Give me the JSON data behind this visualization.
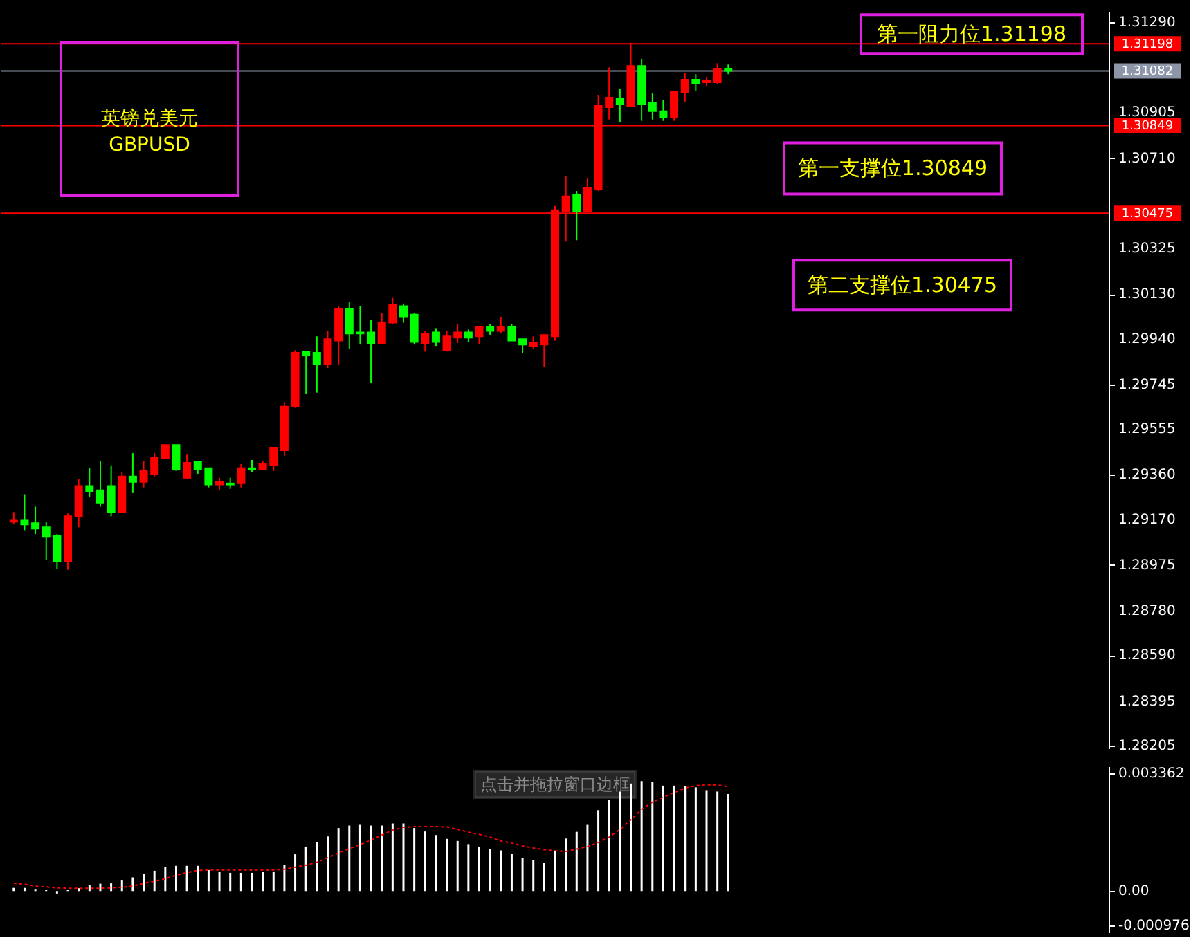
{
  "chart_data": [
    {
      "type": "candlestick",
      "categories": [
        null,
        null,
        null,
        null,
        null,
        null,
        null,
        null,
        null,
        null,
        null,
        null,
        null,
        null,
        null,
        null,
        null,
        null,
        null,
        null,
        null,
        null,
        null,
        null,
        null,
        null,
        null,
        null,
        null,
        null,
        null,
        null,
        null,
        null,
        null,
        null,
        null,
        null,
        null,
        null,
        null,
        null,
        null,
        null,
        null,
        null,
        null,
        null,
        null,
        null,
        null,
        null,
        null,
        null,
        null,
        null,
        null,
        null,
        null,
        null,
        null,
        null,
        null,
        null,
        null,
        null,
        null,
        null,
        null,
        null,
        null,
        null,
        null,
        null,
        null,
        null,
        null,
        null,
        null,
        null,
        null,
        null,
        null,
        null,
        null,
        null,
        null,
        null,
        null,
        null,
        null,
        null,
        null,
        null,
        null,
        null,
        null,
        null,
        null,
        null,
        null
      ],
      "ohlc": [
        [
          1.2916,
          1.29201,
          1.29148,
          1.29165
        ],
        [
          1.29165,
          1.29277,
          1.29124,
          1.29148
        ],
        [
          1.29154,
          1.29224,
          1.29107,
          1.2913
        ],
        [
          1.29136,
          1.2916,
          1.28996,
          1.29095
        ],
        [
          1.29101,
          1.29107,
          1.2896,
          1.2899
        ],
        [
          1.2899,
          1.29195,
          1.28955,
          1.29183
        ],
        [
          1.29183,
          1.29341,
          1.29136,
          1.29312
        ],
        [
          1.29312,
          1.29388,
          1.29265,
          1.29288
        ],
        [
          1.29294,
          1.29417,
          1.29224,
          1.29241
        ],
        [
          1.29312,
          1.294,
          1.29183,
          1.29201
        ],
        [
          1.29201,
          1.2937,
          1.29201,
          1.29353
        ],
        [
          1.29353,
          1.29452,
          1.29282,
          1.29329
        ],
        [
          1.29329,
          1.29417,
          1.29306,
          1.29376
        ],
        [
          1.29364,
          1.29452,
          1.29353,
          1.29435
        ],
        [
          1.29429,
          1.29487,
          1.29429,
          1.29487
        ],
        [
          1.29487,
          1.29487,
          1.29376,
          1.29382
        ],
        [
          1.29347,
          1.29446,
          1.29341,
          1.29411
        ],
        [
          1.29417,
          1.29417,
          1.29364,
          1.29382
        ],
        [
          1.29388,
          1.29388,
          1.29306,
          1.29318
        ],
        [
          1.29318,
          1.29347,
          1.29294,
          1.29329
        ],
        [
          1.29323,
          1.29347,
          1.293,
          1.29318
        ],
        [
          1.29323,
          1.29405,
          1.29306,
          1.29388
        ],
        [
          1.29388,
          1.29423,
          1.2937,
          1.29382
        ],
        [
          1.29382,
          1.29417,
          1.29382,
          1.29405
        ],
        [
          1.294,
          1.29476,
          1.29376,
          1.29476
        ],
        [
          1.29464,
          1.29669,
          1.29441,
          1.29651
        ],
        [
          1.29651,
          1.29891,
          1.29645,
          1.2988
        ],
        [
          1.29885,
          1.29885,
          1.29704,
          1.29868
        ],
        [
          1.2988,
          1.2995,
          1.2971,
          1.29833
        ],
        [
          1.29833,
          1.29973,
          1.29815,
          1.29938
        ],
        [
          1.29932,
          1.30079,
          1.29827,
          1.30067
        ],
        [
          1.30067,
          1.30096,
          1.29897,
          1.29962
        ],
        [
          1.29967,
          1.30079,
          1.29915,
          1.29962
        ],
        [
          1.29967,
          1.3002,
          1.29751,
          1.29921
        ],
        [
          1.29921,
          1.30049,
          1.29915,
          1.30008
        ],
        [
          1.30008,
          1.30114,
          1.30003,
          1.30084
        ],
        [
          1.30079,
          1.3009,
          1.30008,
          1.30032
        ],
        [
          1.30043,
          1.30049,
          1.29915,
          1.29926
        ],
        [
          1.29921,
          1.29973,
          1.29885,
          1.29962
        ],
        [
          1.29967,
          1.29985,
          1.29909,
          1.29926
        ],
        [
          1.29891,
          1.29973,
          1.29885,
          1.2995
        ],
        [
          1.29944,
          1.30003,
          1.29921,
          1.29967
        ],
        [
          1.29967,
          1.29979,
          1.29926,
          1.29944
        ],
        [
          1.2995,
          1.29991,
          1.29915,
          1.29991
        ],
        [
          1.29991,
          1.30003,
          1.29956,
          1.29973
        ],
        [
          1.29973,
          1.30032,
          1.29962,
          1.29991
        ],
        [
          1.29991,
          1.30003,
          1.29932,
          1.29932
        ],
        [
          1.29938,
          1.29938,
          1.2988,
          1.29915
        ],
        [
          1.29909,
          1.2995,
          1.29897,
          1.29921
        ],
        [
          1.29915,
          1.29956,
          1.29821,
          1.29956
        ],
        [
          1.2995,
          1.30506,
          1.29932,
          1.30488
        ],
        [
          1.30483,
          1.30635,
          1.30354,
          1.30547
        ],
        [
          1.30553,
          1.3057,
          1.3036,
          1.30483
        ],
        [
          1.30483,
          1.30623,
          1.30483,
          1.30582
        ],
        [
          1.30576,
          1.3098,
          1.3057,
          1.30933
        ],
        [
          1.30927,
          1.31097,
          1.30875,
          1.30968
        ],
        [
          1.30963,
          1.31004,
          1.30863,
          1.30939
        ],
        [
          1.30933,
          1.31202,
          1.30927,
          1.31103
        ],
        [
          1.31103,
          1.31132,
          1.30869,
          1.30939
        ],
        [
          1.30945,
          1.30986,
          1.30875,
          1.3091
        ],
        [
          1.3091,
          1.30957,
          1.30869,
          1.30886
        ],
        [
          1.30886,
          1.30998,
          1.30869,
          1.30992
        ],
        [
          1.30992,
          1.31074,
          1.30951,
          1.31045
        ],
        [
          1.31045,
          1.31068,
          1.30998,
          1.31027
        ],
        [
          1.31033,
          1.31056,
          1.31015,
          1.31039
        ],
        [
          1.31033,
          1.31115,
          1.31027,
          1.31091
        ],
        [
          1.31091,
          1.31109,
          1.31068,
          1.31082
        ],
        null,
        null,
        null,
        null,
        null,
        null,
        null,
        null,
        null,
        null,
        null,
        null,
        null,
        null,
        null,
        null,
        null,
        null,
        null,
        null,
        null,
        null,
        null,
        null,
        null,
        null,
        null,
        null,
        null,
        null,
        null,
        null,
        null,
        null
      ],
      "colors": [
        "#ff0000",
        "#00ff00",
        "#00ff00",
        "#00ff00",
        "#00ff00",
        "#ff0000",
        "#ff0000",
        "#00ff00",
        "#00ff00",
        "#00ff00",
        "#ff0000",
        "#00ff00",
        "#ff0000",
        "#ff0000",
        "#ff0000",
        "#00ff00",
        "#ff0000",
        "#00ff00",
        "#00ff00",
        "#ff0000",
        "#00ff00",
        "#ff0000",
        "#00ff00",
        "#ff0000",
        "#ff0000",
        "#ff0000",
        "#ff0000",
        "#00ff00",
        "#00ff00",
        "#ff0000",
        "#ff0000",
        "#00ff00",
        "#00ff00",
        "#00ff00",
        "#ff0000",
        "#ff0000",
        "#00ff00",
        "#00ff00",
        "#ff0000",
        "#00ff00",
        "#ff0000",
        "#ff0000",
        "#00ff00",
        "#ff0000",
        "#00ff00",
        "#ff0000",
        "#00ff00",
        "#00ff00",
        "#ff0000",
        "#ff0000",
        "#ff0000",
        "#ff0000",
        "#00ff00",
        "#ff0000",
        "#ff0000",
        "#ff0000",
        "#00ff00",
        "#ff0000",
        "#00ff00",
        "#00ff00",
        "#00ff00",
        "#ff0000",
        "#ff0000",
        "#00ff00",
        "#ff0000",
        "#ff0000",
        "#00ff00",
        null,
        null,
        null,
        null,
        null,
        null,
        null,
        null,
        null,
        null,
        null,
        null,
        null,
        null,
        null,
        null,
        null,
        null,
        null,
        null,
        null,
        null,
        null,
        null,
        null,
        null,
        null,
        null,
        null,
        null,
        null,
        null,
        null,
        null
      ],
      "ylim": [
        1.28193,
        1.31337
      ],
      "yticks": [
        {
          "value": 1.3129,
          "label": "1.31290"
        },
        1.30905,
        {
          "value": 1.3071,
          "label": "1.30710"
        },
        1.30325,
        {
          "value": 1.3013,
          "label": "1.30130"
        },
        {
          "value": 1.2994,
          "label": "1.29940"
        },
        1.29745,
        1.29555,
        {
          "value": 1.2936,
          "label": "1.29360"
        },
        {
          "value": 1.2917,
          "label": "1.29170"
        },
        1.28975,
        {
          "value": 1.2878,
          "label": "1.28780"
        },
        {
          "value": 1.2859,
          "label": "1.28590"
        },
        1.28395,
        1.28205
      ],
      "ref_lines": [
        {
          "axis": "y",
          "value": 1.31198,
          "label": "1.31198",
          "color": "#ff0000"
        },
        {
          "axis": "y",
          "value": 1.31082,
          "label": "1.31082",
          "color": "#8c96a8"
        },
        {
          "axis": "y",
          "value": 1.30849,
          "label": "1.30849",
          "color": "#ff0000"
        },
        {
          "axis": "y",
          "value": 1.30475,
          "label": "1.30475",
          "color": "#ff0000"
        }
      ],
      "annotations": [
        "英镑兑美元\nGBPUSD",
        {
          "text": "第一阻力位1.31198",
          "y": 1.31198
        },
        {
          "text": "第一支撑位1.30849",
          "y": 1.30849
        },
        {
          "text": "第二支撑位1.30475",
          "y": 1.30475
        }
      ],
      "tick_labels": "y",
      "grid": false
    },
    {
      "type": "bar",
      "categories": [
        null,
        null,
        null,
        null,
        null,
        null,
        null,
        null,
        null,
        null,
        null,
        null,
        null,
        null,
        null,
        null,
        null,
        null,
        null,
        null,
        null,
        null,
        null,
        null,
        null,
        null,
        null,
        null,
        null,
        null,
        null,
        null,
        null,
        null,
        null,
        null,
        null,
        null,
        null,
        null,
        null,
        null,
        null,
        null,
        null,
        null,
        null,
        null,
        null,
        null,
        null,
        null,
        null,
        null,
        null,
        null,
        null,
        null,
        null,
        null,
        null,
        null,
        null,
        null,
        null,
        null,
        null,
        null,
        null,
        null,
        null,
        null,
        null,
        null,
        null,
        null,
        null,
        null,
        null,
        null,
        null,
        null,
        null,
        null,
        null,
        null,
        null,
        null,
        null,
        null,
        null,
        null,
        null,
        null,
        null,
        null,
        null,
        null,
        null,
        null,
        null
      ],
      "series": [
        {
          "type": "bar",
          "color": "#ffffff",
          "values": [
            9e-05,
            9e-05,
            6e-05,
            4e-05,
            -7e-05,
            4e-05,
            8e-05,
            0.00018,
            0.00021,
            0.00022,
            0.00032,
            0.00039,
            0.00048,
            0.00058,
            0.00068,
            0.00072,
            0.00072,
            0.00072,
            0.0006,
            0.00054,
            0.00052,
            0.00052,
            0.00052,
            0.00054,
            0.00056,
            0.00074,
            0.00105,
            0.00127,
            0.0014,
            0.00156,
            0.0018,
            0.00187,
            0.00189,
            0.00187,
            0.00187,
            0.00193,
            0.00193,
            0.0018,
            0.0017,
            0.0016,
            0.00149,
            0.00143,
            0.00134,
            0.00127,
            0.00121,
            0.00116,
            0.00107,
            0.00094,
            0.00088,
            0.00081,
            0.00115,
            0.0015,
            0.00169,
            0.00189,
            0.00231,
            0.00261,
            0.00284,
            0.00307,
            0.00314,
            0.00311,
            0.00301,
            0.00301,
            0.003,
            0.00296,
            0.00288,
            0.00284,
            0.00277,
            null,
            null,
            null,
            null,
            null,
            null,
            null,
            null,
            null,
            null,
            null,
            null,
            null,
            null,
            null,
            null,
            null,
            null,
            null,
            null,
            null,
            null,
            null,
            null,
            null,
            null,
            null,
            null,
            null,
            null,
            null,
            null,
            null,
            null
          ]
        },
        {
          "type": "line",
          "color": "#ff0000",
          "line_style": "dotted",
          "values": [
            0.00022,
            0.0002,
            0.00014,
            0.00012,
            9e-05,
            8e-05,
            8e-05,
            8e-05,
            8e-05,
            9e-05,
            0.00011,
            0.00014,
            0.00022,
            0.00028,
            0.00035,
            0.00045,
            0.00053,
            0.00059,
            0.0006,
            0.0006,
            0.0006,
            0.0006,
            0.0006,
            0.0006,
            0.0006,
            0.00062,
            0.00068,
            0.00074,
            0.00082,
            0.00095,
            0.00109,
            0.00121,
            0.00133,
            0.00145,
            0.0016,
            0.00174,
            0.00182,
            0.00184,
            0.00184,
            0.00184,
            0.00183,
            0.00176,
            0.00168,
            0.00162,
            0.00154,
            0.00143,
            0.00137,
            0.00129,
            0.00123,
            0.00118,
            0.00115,
            0.00113,
            0.0012,
            0.00127,
            0.00139,
            0.00154,
            0.00176,
            0.00203,
            0.00233,
            0.00254,
            0.00268,
            0.00281,
            0.00294,
            0.00301,
            0.00303,
            0.00303,
            0.00298,
            null,
            null,
            null,
            null,
            null,
            null,
            null,
            null,
            null,
            null,
            null,
            null,
            null,
            null,
            null,
            null,
            null,
            null,
            null,
            null,
            null,
            null,
            null,
            null,
            null,
            null,
            null,
            null,
            null,
            null,
            null,
            null,
            null,
            null
          ]
        }
      ],
      "ylim": [
        -0.00118,
        0.00356
      ],
      "yticks": [
        0.003362,
        {
          "value": 0,
          "label": "0.00"
        },
        -0.000976
      ],
      "annotations": [
        "点击并拖拉窗口边框"
      ],
      "tick_labels": "y",
      "grid": false
    }
  ]
}
